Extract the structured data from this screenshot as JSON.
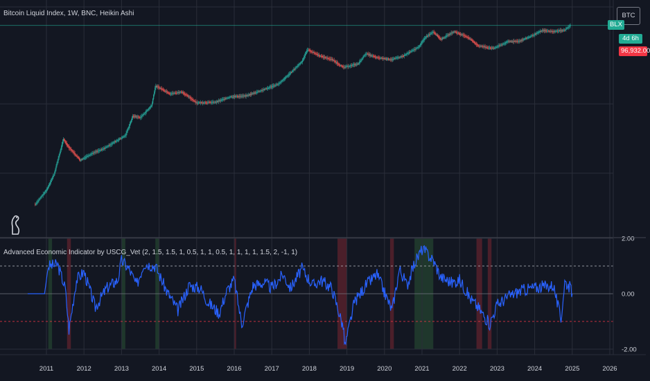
{
  "main_legend": "Bitcoin Liquid Index, 1W, BNC, Heikin Ashi",
  "indicator_legend": "Advanced Economic Indicator by USCG_Vet (2, 1.5, 1.5, 1, 0.5, 1, 1, 0.5, 1, 1, 1, 1, 1.5, 2, -1, 1)",
  "symbol_button": "BTC",
  "symbol_tag": "BLX",
  "timer_tag": "4d 6h",
  "price_tag": "96,932.00",
  "colors": {
    "background": "#131722",
    "up": "#26a69a",
    "down": "#ef5350",
    "indicator": "#2962ff",
    "grid": "#2a2e39",
    "text": "#d1d4dc"
  },
  "chart_data": [
    {
      "type": "candlestick",
      "title": "Bitcoin Liquid Index, 1W, BNC, Heikin Ashi",
      "scale": "log",
      "x": [
        2010.7,
        2011.0,
        2011.2,
        2011.45,
        2011.6,
        2011.9,
        2012.2,
        2012.5,
        2012.8,
        2013.1,
        2013.3,
        2013.5,
        2013.8,
        2013.9,
        2014.0,
        2014.3,
        2014.6,
        2015.0,
        2015.5,
        2015.9,
        2016.3,
        2016.8,
        2017.2,
        2017.5,
        2017.8,
        2017.95,
        2018.3,
        2018.6,
        2018.9,
        2019.3,
        2019.5,
        2019.8,
        2020.2,
        2020.5,
        2020.9,
        2021.1,
        2021.3,
        2021.5,
        2021.85,
        2022.2,
        2022.5,
        2022.9,
        2023.3,
        2023.6,
        2023.9,
        2024.2,
        2024.5,
        2024.8,
        2024.95
      ],
      "y": [
        0.1,
        0.3,
        1,
        15,
        8,
        3,
        5,
        7,
        12,
        20,
        90,
        80,
        200,
        900,
        800,
        500,
        580,
        250,
        260,
        400,
        420,
        700,
        1100,
        2500,
        6000,
        15000,
        9000,
        7000,
        3800,
        5000,
        11000,
        8000,
        7000,
        9200,
        18000,
        40000,
        60000,
        33000,
        60000,
        40000,
        20000,
        16500,
        28000,
        29000,
        42000,
        65000,
        60000,
        68000,
        96932
      ],
      "legend": "none",
      "grid": true,
      "last_price": 96932.0
    },
    {
      "type": "line",
      "title": "Advanced Economic Indicator by USCG_Vet (2, 1.5, 1.5, 1, 0.5, 1, 1, 0.5, 1, 1, 1, 1, 1.5, 2, -1, 1)",
      "x": [
        2010.5,
        2010.95,
        2011.05,
        2011.3,
        2011.5,
        2011.6,
        2011.8,
        2012.0,
        2012.3,
        2012.6,
        2012.9,
        2013.0,
        2013.2,
        2013.4,
        2013.6,
        2013.9,
        2014.0,
        2014.2,
        2014.5,
        2014.8,
        2015.1,
        2015.3,
        2015.6,
        2015.8,
        2016.0,
        2016.2,
        2016.5,
        2016.8,
        2017.0,
        2017.3,
        2017.5,
        2017.8,
        2017.95,
        2018.1,
        2018.3,
        2018.6,
        2018.9,
        2018.95,
        2019.2,
        2019.5,
        2019.8,
        2020.2,
        2020.4,
        2020.6,
        2020.8,
        2021.0,
        2021.1,
        2021.3,
        2021.5,
        2021.8,
        2022.0,
        2022.3,
        2022.5,
        2022.8,
        2023.0,
        2023.3,
        2023.6,
        2023.9,
        2024.2,
        2024.5,
        2024.7,
        2024.8,
        2024.95,
        2025.0
      ],
      "y": [
        0.0,
        0.0,
        1.0,
        1.05,
        0.2,
        -1.3,
        0.5,
        0.8,
        -0.5,
        0.2,
        0.5,
        1.2,
        0.9,
        0.3,
        1.1,
        1.0,
        0.7,
        0.1,
        -0.6,
        0.3,
        0.2,
        -0.3,
        -0.7,
        0.1,
        0.5,
        -1.1,
        0.3,
        0.4,
        0.2,
        0.7,
        0.2,
        0.9,
        0.6,
        0.3,
        0.5,
        0.2,
        -1.2,
        -1.9,
        -0.3,
        0.3,
        0.7,
        -0.6,
        0.9,
        0.3,
        1.1,
        1.6,
        1.5,
        1.2,
        0.6,
        0.4,
        0.5,
        -0.2,
        -0.5,
        -1.1,
        -0.4,
        -0.1,
        0.1,
        0.2,
        0.25,
        0.3,
        -0.95,
        0.45,
        0.2,
        0.0
      ],
      "ylim": [
        -2.0,
        2.0
      ],
      "yticks": [
        "2.00",
        "0.00",
        "-2.00"
      ],
      "threshold_levels": [
        1,
        -1
      ],
      "shaded_bands": [
        {
          "from": 2011.05,
          "to": 2011.15,
          "color": "green"
        },
        {
          "from": 2011.55,
          "to": 2011.65,
          "color": "red"
        },
        {
          "from": 2013.0,
          "to": 2013.1,
          "color": "green"
        },
        {
          "from": 2013.9,
          "to": 2014.0,
          "color": "green"
        },
        {
          "from": 2016.0,
          "to": 2016.05,
          "color": "red"
        },
        {
          "from": 2018.75,
          "to": 2019.0,
          "color": "red"
        },
        {
          "from": 2020.15,
          "to": 2020.25,
          "color": "red"
        },
        {
          "from": 2020.8,
          "to": 2021.3,
          "color": "green"
        },
        {
          "from": 2022.45,
          "to": 2022.6,
          "color": "red"
        },
        {
          "from": 2022.75,
          "to": 2022.85,
          "color": "red"
        }
      ]
    }
  ],
  "x_ticks": [
    "2011",
    "2012",
    "2013",
    "2014",
    "2015",
    "2016",
    "2017",
    "2018",
    "2019",
    "2020",
    "2021",
    "2022",
    "2023",
    "2024",
    "2025",
    "2026"
  ]
}
